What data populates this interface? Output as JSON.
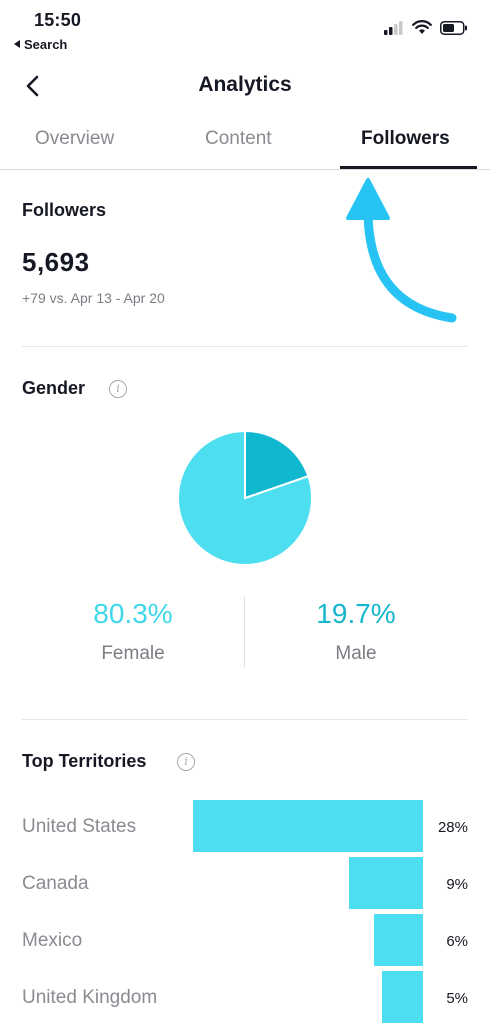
{
  "status_bar": {
    "time": "15:50",
    "back_label": "Search"
  },
  "nav": {
    "title": "Analytics"
  },
  "tabs": [
    {
      "label": "Overview",
      "active": false
    },
    {
      "label": "Content",
      "active": false
    },
    {
      "label": "Followers",
      "active": true
    }
  ],
  "followers": {
    "title": "Followers",
    "count": "5,693",
    "change": "+79 vs. Apr 13 - Apr 20"
  },
  "gender": {
    "title": "Gender",
    "female": {
      "percent_text": "80.3%",
      "label": "Female",
      "value": 80.3,
      "color": "#4ddff0"
    },
    "male": {
      "percent_text": "19.7%",
      "label": "Male",
      "value": 19.7,
      "color": "#0fb8cf"
    }
  },
  "territories": {
    "title": "Top Territories",
    "items": [
      {
        "name": "United States",
        "percent_text": "28%",
        "value": 28
      },
      {
        "name": "Canada",
        "percent_text": "9%",
        "value": 9
      },
      {
        "name": "Mexico",
        "percent_text": "6%",
        "value": 6
      },
      {
        "name": "United Kingdom",
        "percent_text": "5%",
        "value": 5
      }
    ]
  },
  "colors": {
    "accent": "#4ddff0",
    "annotation_arrow": "#27c3f5",
    "text_primary": "#161823",
    "text_secondary": "#8a8b91"
  }
}
